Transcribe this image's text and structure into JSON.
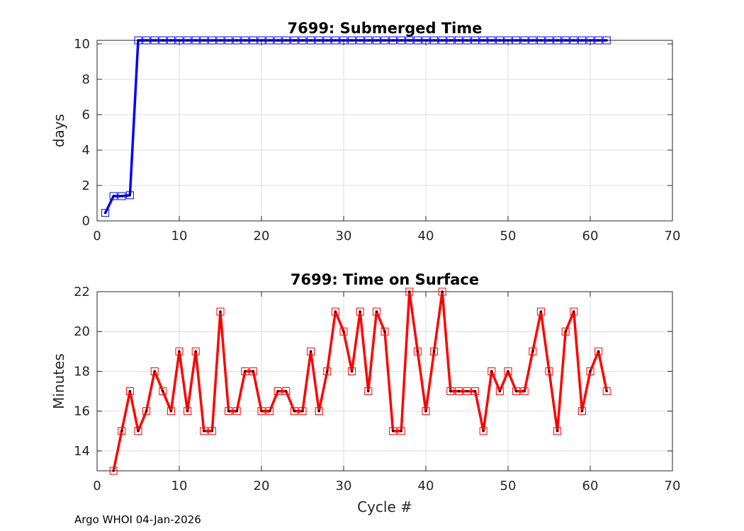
{
  "footer": "Argo WHOI 04-Jan-2026",
  "chart_data": [
    {
      "type": "line",
      "title": "7699: Submerged Time",
      "xlabel": "",
      "ylabel": "days",
      "xlim": [
        0,
        70
      ],
      "ylim": [
        0,
        10.2
      ],
      "xticks": [
        0,
        10,
        20,
        30,
        40,
        50,
        60,
        70
      ],
      "yticks": [
        0,
        2,
        4,
        6,
        8,
        10
      ],
      "grid": true,
      "color": "#0000ff",
      "marker": "square",
      "x": [
        1,
        2,
        3,
        4,
        5,
        6,
        7,
        8,
        9,
        10,
        11,
        12,
        13,
        14,
        15,
        16,
        17,
        18,
        19,
        20,
        21,
        22,
        23,
        24,
        25,
        26,
        27,
        28,
        29,
        30,
        31,
        32,
        33,
        34,
        35,
        36,
        37,
        38,
        39,
        40,
        41,
        42,
        43,
        44,
        45,
        46,
        47,
        48,
        49,
        50,
        51,
        52,
        53,
        54,
        55,
        56,
        57,
        58,
        59,
        60,
        61,
        62
      ],
      "values": [
        0.45,
        1.4,
        1.4,
        1.45,
        10.2,
        10.2,
        10.2,
        10.2,
        10.2,
        10.2,
        10.2,
        10.2,
        10.2,
        10.2,
        10.2,
        10.2,
        10.2,
        10.2,
        10.2,
        10.2,
        10.2,
        10.2,
        10.2,
        10.2,
        10.2,
        10.2,
        10.2,
        10.2,
        10.2,
        10.2,
        10.2,
        10.2,
        10.2,
        10.2,
        10.2,
        10.2,
        10.2,
        10.2,
        10.2,
        10.2,
        10.2,
        10.2,
        10.2,
        10.2,
        10.2,
        10.2,
        10.2,
        10.2,
        10.2,
        10.2,
        10.2,
        10.2,
        10.2,
        10.2,
        10.2,
        10.2,
        10.2,
        10.2,
        10.2,
        10.2,
        10.2,
        10.2
      ]
    },
    {
      "type": "line",
      "title": "7699: Time on Surface",
      "xlabel": "Cycle #",
      "ylabel": "Minutes",
      "xlim": [
        0,
        70
      ],
      "ylim": [
        13,
        22
      ],
      "xticks": [
        0,
        10,
        20,
        30,
        40,
        50,
        60,
        70
      ],
      "yticks": [
        14,
        16,
        18,
        20,
        22
      ],
      "grid": true,
      "color": "#ff0000",
      "marker": "square",
      "x": [
        2,
        3,
        4,
        5,
        6,
        7,
        8,
        9,
        10,
        11,
        12,
        13,
        14,
        15,
        16,
        17,
        18,
        19,
        20,
        21,
        22,
        23,
        24,
        25,
        26,
        27,
        28,
        29,
        30,
        31,
        32,
        33,
        34,
        35,
        36,
        37,
        38,
        39,
        40,
        41,
        42,
        43,
        44,
        45,
        46,
        47,
        48,
        49,
        50,
        51,
        52,
        53,
        54,
        55,
        56,
        57,
        58,
        59,
        60,
        61,
        62
      ],
      "values": [
        13,
        15,
        17,
        15,
        16,
        18,
        17,
        16,
        19,
        16,
        19,
        15,
        15,
        21,
        16,
        16,
        18,
        18,
        16,
        16,
        17,
        17,
        16,
        16,
        19,
        16,
        18,
        21,
        20,
        18,
        21,
        17,
        21,
        20,
        15,
        15,
        22,
        19,
        16,
        19,
        22,
        17,
        17,
        17,
        17,
        15,
        18,
        17,
        18,
        17,
        17,
        19,
        21,
        18,
        15,
        20,
        21,
        16,
        18,
        19,
        17
      ]
    }
  ]
}
